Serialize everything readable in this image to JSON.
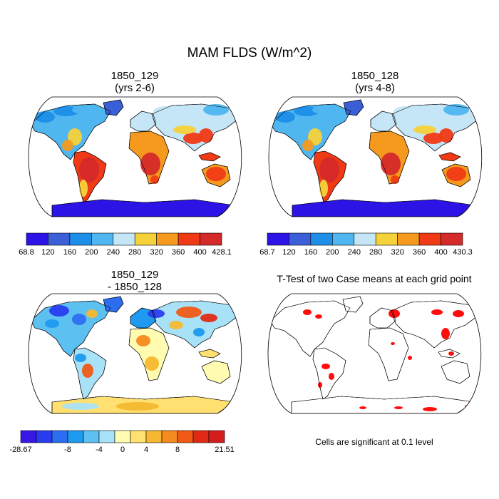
{
  "figure": {
    "title": "MAM FLDS (W/m^2)"
  },
  "panels": [
    {
      "title_line1": "1850_129",
      "title_line2": "(yrs 2-6)",
      "colorbar": {
        "labels": [
          "68.8",
          "120",
          "160",
          "200",
          "240",
          "280",
          "320",
          "360",
          "400",
          "428.1"
        ],
        "colors": [
          "#2d14e6",
          "#3b5fd6",
          "#1e8fe8",
          "#4fb6f0",
          "#c5e6f6",
          "#f5d23a",
          "#f59a1e",
          "#f03a16",
          "#d42a2a"
        ]
      }
    },
    {
      "title_line1": "1850_128",
      "title_line2": "(yrs 4-8)",
      "colorbar": {
        "labels": [
          "68.7",
          "120",
          "160",
          "200",
          "240",
          "280",
          "320",
          "360",
          "400",
          "430.3"
        ],
        "colors": [
          "#2d14e6",
          "#3b5fd6",
          "#1e8fe8",
          "#4fb6f0",
          "#c5e6f6",
          "#f5d23a",
          "#f59a1e",
          "#f03a16",
          "#d42a2a"
        ]
      }
    },
    {
      "title_line1": "1850_129",
      "title_line2": "- 1850_128",
      "colorbar": {
        "labels": [
          "-28.67",
          "-8",
          "-4",
          "0",
          "4",
          "8",
          "21.51"
        ],
        "colors": [
          "#3a16e6",
          "#2a3cf0",
          "#2d6ef0",
          "#1e9af0",
          "#5cc0f0",
          "#a8e2f8",
          "#fffbb0",
          "#ffe070",
          "#f5b830",
          "#f58a1e",
          "#f05a16",
          "#e02a16",
          "#d41e1e"
        ]
      }
    },
    {
      "title_line1": "T-Test of two Case means at each grid point",
      "note": "Cells are significant at 0.1 level"
    }
  ],
  "colors": {
    "land_outline": "#000000",
    "significant": "#ff0000"
  }
}
